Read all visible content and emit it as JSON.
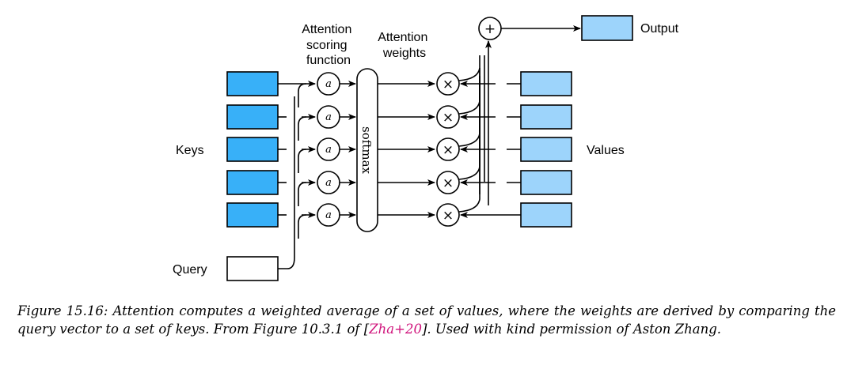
{
  "labels": {
    "scoring": [
      "Attention",
      "scoring",
      "function"
    ],
    "weights": [
      "Attention",
      "weights"
    ],
    "keys": "Keys",
    "values": "Values",
    "query": "Query",
    "output": "Output",
    "softmax": "softmax",
    "scoring_symbol": "a",
    "multiply_symbol": "×",
    "sum_symbol": "+"
  },
  "colors": {
    "key_fill": "#38b0f8",
    "value_fill": "#9dd4fb",
    "output_fill": "#9dd4fb",
    "query_fill": "#ffffff",
    "stroke": "#000000"
  },
  "counts": {
    "keys": 5,
    "values": 5
  },
  "caption": {
    "prefix": "Figure 15.16: Attention computes a weighted average of a set of values, where the weights are derived by comparing the query vector to a set of keys. From Figure 10.3.1 of [",
    "citation": "Zha+20",
    "suffix": "]. Used with kind permission of Aston Zhang."
  }
}
